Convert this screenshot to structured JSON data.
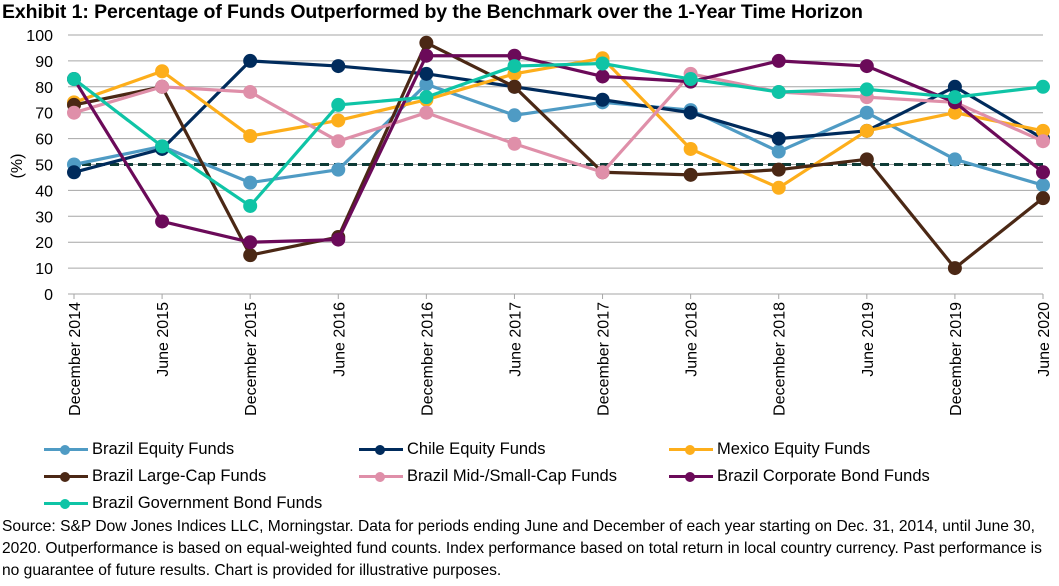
{
  "chart_data": {
    "type": "line",
    "title": "Exhibit 1: Percentage of Funds Outperformed by the Benchmark over the 1-Year Time Horizon",
    "xlabel": "",
    "ylabel": "(%)",
    "ylim": [
      0,
      100
    ],
    "yticks": [
      0,
      10,
      20,
      30,
      40,
      50,
      60,
      70,
      80,
      90,
      100
    ],
    "grid": true,
    "legend_position": "bottom",
    "reference_line": {
      "value": 50,
      "style": "dashed",
      "color": "#0d3b36"
    },
    "categories": [
      "December 2014",
      "June 2015",
      "December 2015",
      "June 2016",
      "December 2016",
      "June 2017",
      "December 2017",
      "June 2018",
      "December 2018",
      "June 2019",
      "December 2019",
      "June 2020"
    ],
    "series": [
      {
        "name": "Brazil Equity Funds",
        "color": "#4f9bc4",
        "values": [
          50,
          57,
          43,
          48,
          81,
          69,
          74,
          71,
          55,
          70,
          52,
          42
        ]
      },
      {
        "name": "Chile Equity Funds",
        "color": "#002b5c",
        "values": [
          47,
          56,
          90,
          88,
          85,
          80,
          75,
          70,
          60,
          63,
          80,
          60
        ]
      },
      {
        "name": "Mexico Equity Funds",
        "color": "#fdae1b",
        "values": [
          74,
          86,
          61,
          67,
          75,
          85,
          91,
          56,
          41,
          63,
          70,
          63
        ]
      },
      {
        "name": "Brazil Large-Cap Funds",
        "color": "#4b2815",
        "values": [
          73,
          80,
          15,
          22,
          97,
          80,
          47,
          46,
          48,
          52,
          10,
          37
        ]
      },
      {
        "name": "Brazil Mid-/Small-Cap Funds",
        "color": "#df8fa9",
        "values": [
          70,
          80,
          78,
          59,
          70,
          58,
          47,
          85,
          78,
          76,
          74,
          59
        ]
      },
      {
        "name": "Brazil Corporate Bond Funds",
        "color": "#6b0a59",
        "values": [
          83,
          28,
          20,
          21,
          92,
          92,
          84,
          82,
          90,
          88,
          74,
          47
        ]
      },
      {
        "name": "Brazil Government Bond Funds",
        "color": "#0fc4a6",
        "values": [
          83,
          57,
          34,
          73,
          76,
          88,
          89,
          83,
          78,
          79,
          76,
          80
        ]
      }
    ]
  },
  "footnote": "Source: S&P Dow Jones Indices LLC, Morningstar. Data for periods ending June and December of each year starting on Dec. 31, 2014, until June 30, 2020. Outperformance is based on equal-weighted fund counts. Index performance based on total return in local country currency. Past performance is no guarantee of future results. Chart is provided for illustrative purposes."
}
